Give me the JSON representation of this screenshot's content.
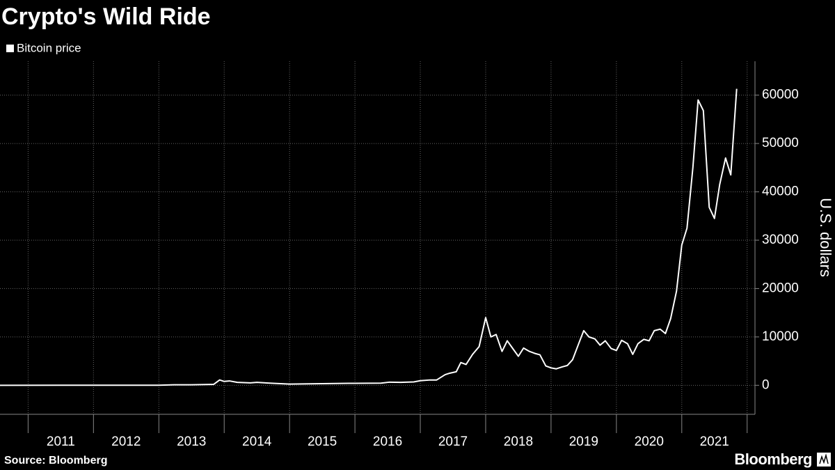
{
  "chart_data": {
    "type": "line",
    "title": "Crypto's Wild Ride",
    "y_label": "U.S. dollars",
    "source": "Source: Bloomberg",
    "brand": "Bloomberg",
    "xlim": [
      2010.57,
      2022.12
    ],
    "xticks": [
      2011,
      2012,
      2013,
      2014,
      2015,
      2016,
      2017,
      2018,
      2019,
      2020,
      2021,
      2022
    ],
    "xtick_labels": [
      {
        "value": 2011.5,
        "label": "2011"
      },
      {
        "value": 2012.5,
        "label": "2012"
      },
      {
        "value": 2013.5,
        "label": "2013"
      },
      {
        "value": 2014.5,
        "label": "2014"
      },
      {
        "value": 2015.5,
        "label": "2015"
      },
      {
        "value": 2016.5,
        "label": "2016"
      },
      {
        "value": 2017.5,
        "label": "2017"
      },
      {
        "value": 2018.5,
        "label": "2018"
      },
      {
        "value": 2019.5,
        "label": "2019"
      },
      {
        "value": 2020.5,
        "label": "2020"
      },
      {
        "value": 2021.5,
        "label": "2021"
      }
    ],
    "ylim": [
      -6000,
      67000
    ],
    "yticks": [
      0,
      10000,
      20000,
      30000,
      40000,
      50000,
      60000
    ],
    "grid": true,
    "x": [
      2010.57,
      2011.5,
      2012.5,
      2013.0,
      2013.23,
      2013.5,
      2013.84,
      2013.93,
      2014.0,
      2014.08,
      2014.2,
      2014.4,
      2014.5,
      2014.75,
      2015.0,
      2015.9,
      2016.0,
      2016.4,
      2016.53,
      2016.7,
      2016.9,
      2017.0,
      2017.15,
      2017.25,
      2017.38,
      2017.45,
      2017.55,
      2017.62,
      2017.7,
      2017.8,
      2017.9,
      2018.0,
      2018.08,
      2018.16,
      2018.25,
      2018.33,
      2018.42,
      2018.5,
      2018.58,
      2018.67,
      2018.75,
      2018.83,
      2018.92,
      2019.0,
      2019.08,
      2019.17,
      2019.25,
      2019.33,
      2019.42,
      2019.5,
      2019.58,
      2019.67,
      2019.75,
      2019.83,
      2019.92,
      2020.0,
      2020.08,
      2020.17,
      2020.25,
      2020.33,
      2020.42,
      2020.5,
      2020.58,
      2020.67,
      2020.75,
      2020.83,
      2020.92,
      2021.0,
      2021.08,
      2021.17,
      2021.25,
      2021.33,
      2021.42,
      2021.5,
      2021.58,
      2021.67,
      2021.75,
      2021.84
    ],
    "series": [
      {
        "name": "Bitcoin price",
        "color": "#ffffff",
        "values": [
          0,
          5,
          10,
          15,
          100,
          100,
          200,
          1100,
          800,
          900,
          600,
          500,
          600,
          400,
          250,
          400,
          400,
          450,
          650,
          600,
          700,
          950,
          1100,
          1100,
          2200,
          2500,
          2800,
          4700,
          4300,
          6400,
          8000,
          14000,
          10000,
          10500,
          7000,
          9200,
          7500,
          6000,
          7700,
          7000,
          6600,
          6300,
          4000,
          3600,
          3400,
          3800,
          4100,
          5300,
          8500,
          11300,
          10000,
          9600,
          8300,
          9200,
          7600,
          7200,
          9300,
          8600,
          6400,
          8600,
          9500,
          9200,
          11300,
          11600,
          10700,
          13800,
          19500,
          29000,
          32500,
          45000,
          59000,
          56800,
          36800,
          34500,
          41500,
          47000,
          43500,
          61300
        ]
      }
    ]
  }
}
